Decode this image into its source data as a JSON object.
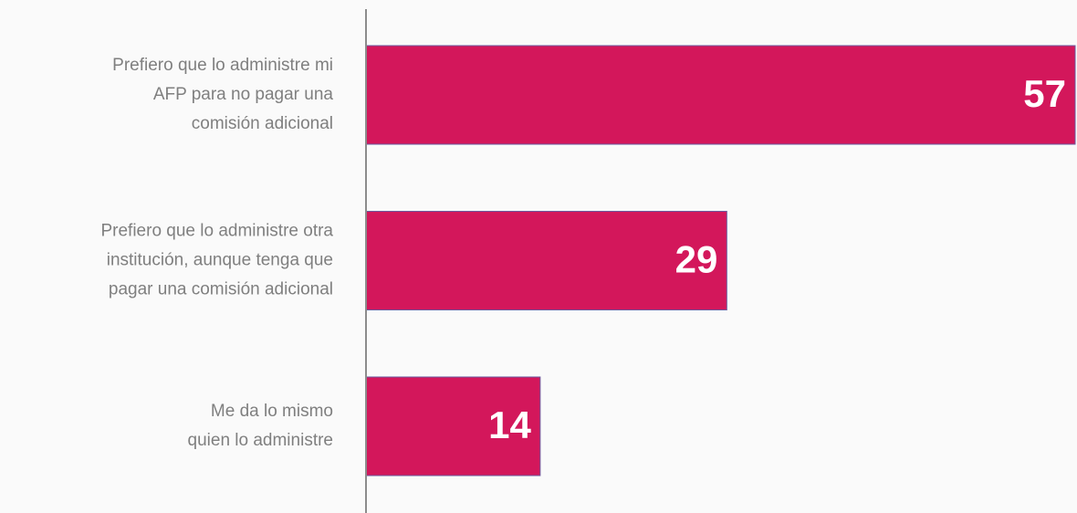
{
  "chart_data": {
    "type": "barh",
    "categories": [
      "Prefiero que lo administre mi\nAFP para no pagar una\ncomisión adicional",
      "Prefiero que lo administre otra\ninstitución, aunque tenga que\npagar una comisión adicional",
      "Me da lo mismo\nquien lo administre"
    ],
    "values": [
      57,
      29,
      14
    ],
    "color": "#d3175b"
  }
}
